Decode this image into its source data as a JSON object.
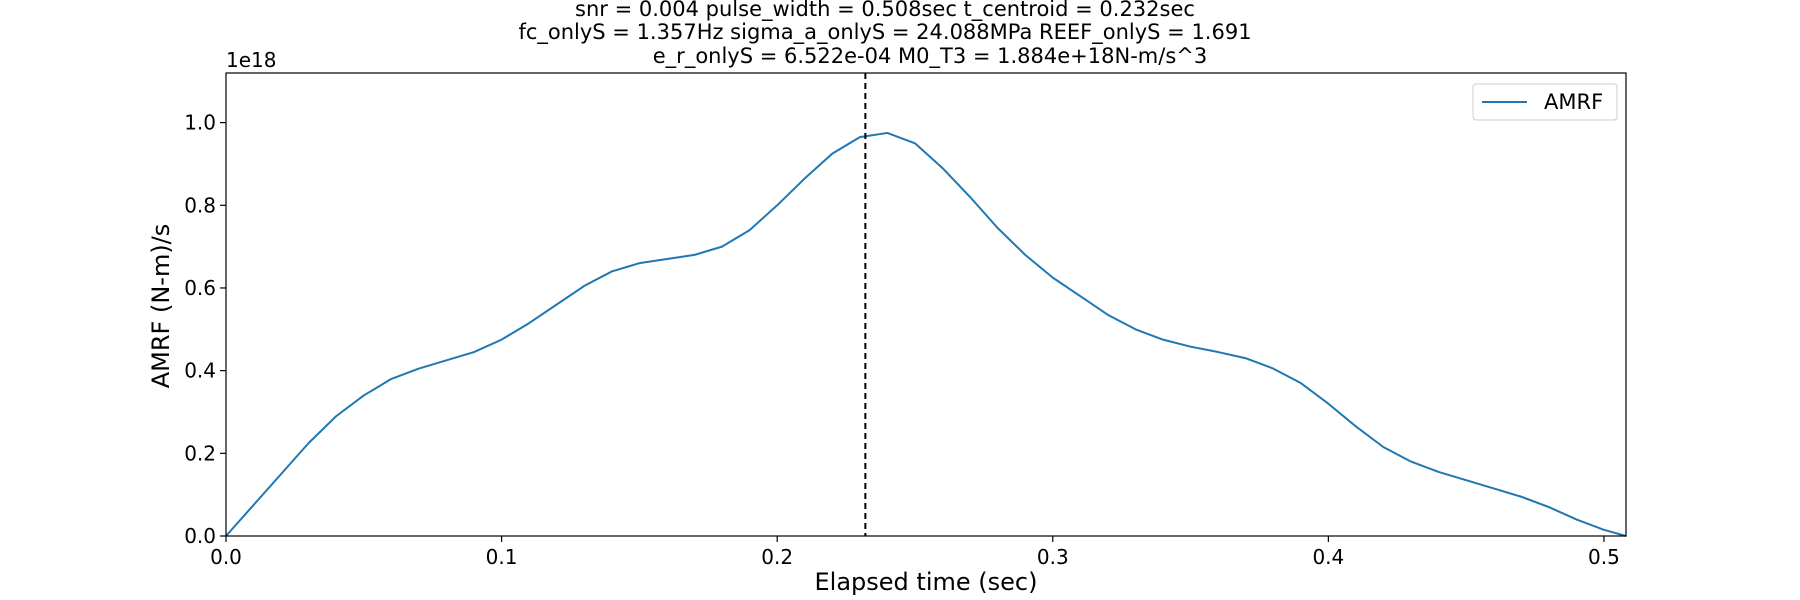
{
  "chart_data": {
    "type": "line",
    "title_lines": [
      "snr = 0.004 pulse_width = 0.508sec t_centroid = 0.232sec",
      "fc_onlyS = 1.357Hz sigma_a_onlyS = 24.088MPa REEF_onlyS = 1.691",
      "e_r_onlyS = 6.522e-04 M0_T3 = 1.884e+18N-m/s^3"
    ],
    "xlabel": "Elapsed time (sec)",
    "ylabel": "AMRF (N-m)/s",
    "y_offset_label": "1e18",
    "xlim": [
      0,
      0.508
    ],
    "ylim": [
      0,
      1.12
    ],
    "x_ticks": [
      0.0,
      0.1,
      0.2,
      0.3,
      0.4,
      0.5
    ],
    "x_tick_labels": [
      "0.0",
      "0.1",
      "0.2",
      "0.3",
      "0.4",
      "0.5"
    ],
    "y_ticks": [
      0.0,
      0.2,
      0.4,
      0.6,
      0.8,
      1.0
    ],
    "y_tick_labels": [
      "0.0",
      "0.2",
      "0.4",
      "0.6",
      "0.8",
      "1.0"
    ],
    "grid": false,
    "legend_position": "top-right",
    "vline": {
      "x": 0.232,
      "style": "dashed",
      "color": "#000000"
    },
    "series": [
      {
        "name": "AMRF",
        "color": "#1f77b4",
        "x": [
          0.0,
          0.01,
          0.02,
          0.03,
          0.04,
          0.05,
          0.06,
          0.07,
          0.08,
          0.09,
          0.1,
          0.11,
          0.12,
          0.13,
          0.14,
          0.15,
          0.16,
          0.17,
          0.18,
          0.19,
          0.2,
          0.21,
          0.22,
          0.23,
          0.24,
          0.25,
          0.26,
          0.27,
          0.28,
          0.29,
          0.3,
          0.31,
          0.32,
          0.33,
          0.34,
          0.35,
          0.36,
          0.37,
          0.38,
          0.39,
          0.4,
          0.41,
          0.42,
          0.43,
          0.44,
          0.45,
          0.46,
          0.47,
          0.48,
          0.49,
          0.5,
          0.508
        ],
        "values": [
          0.0,
          0.075,
          0.15,
          0.225,
          0.29,
          0.34,
          0.38,
          0.405,
          0.425,
          0.445,
          0.475,
          0.515,
          0.56,
          0.605,
          0.64,
          0.66,
          0.67,
          0.68,
          0.7,
          0.74,
          0.8,
          0.865,
          0.925,
          0.965,
          0.975,
          0.95,
          0.89,
          0.82,
          0.745,
          0.68,
          0.625,
          0.58,
          0.535,
          0.5,
          0.475,
          0.458,
          0.445,
          0.43,
          0.405,
          0.37,
          0.32,
          0.265,
          0.215,
          0.18,
          0.155,
          0.135,
          0.115,
          0.095,
          0.07,
          0.04,
          0.015,
          0.0
        ]
      }
    ]
  }
}
